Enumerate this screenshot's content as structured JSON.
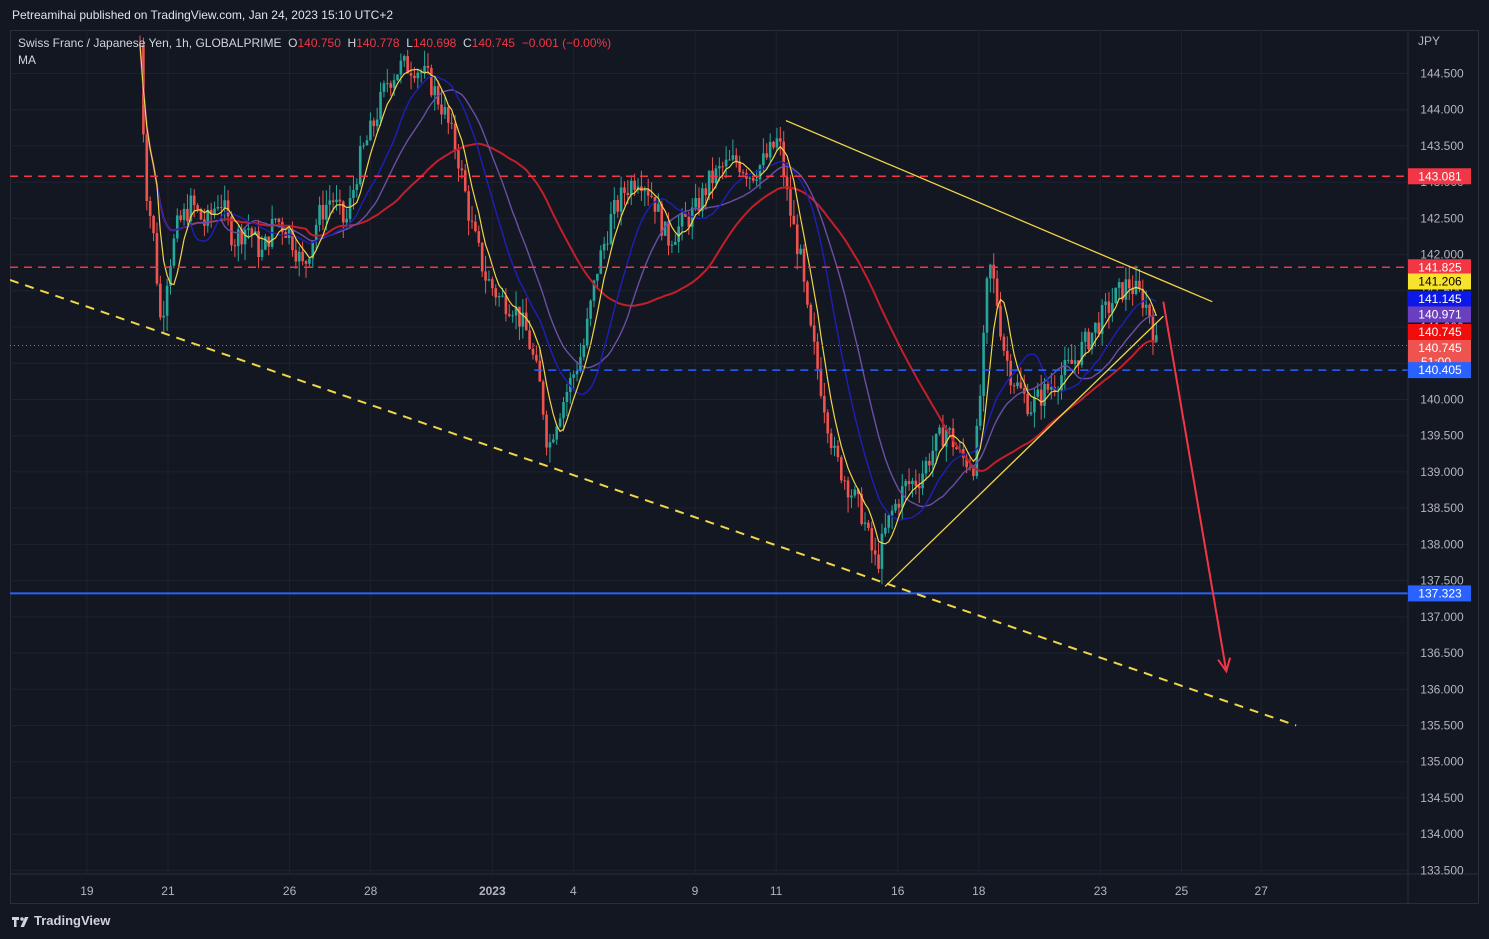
{
  "header": {
    "published": "Petreamihai published on TradingView.com, Jan 24, 2023 15:10 UTC+2"
  },
  "legend": {
    "symbol": "Swiss Franc / Japanese Yen, 1h, GLOBALPRIME",
    "o_label": "O",
    "o_value": "140.750",
    "h_label": "H",
    "h_value": "140.778",
    "l_label": "L",
    "l_value": "140.698",
    "c_label": "C",
    "c_value": "140.745",
    "change": "−0.001 (−0.00%)",
    "indicator": "MA"
  },
  "footer": {
    "brand": "TradingView",
    "logo_icon": "tradingview-logo-icon"
  },
  "colors": {
    "background": "#131722",
    "grid": "#1e222d",
    "up": "#26a69a",
    "down": "#ef5350",
    "ma_fast": "#f0d648",
    "ma_mid": "#1f1fb8",
    "ma_slow": "#6a4fa3",
    "ma_long": "#c21f2a",
    "red_level": "#f23645",
    "blue_level": "#2962ff",
    "trend_yellow": "#f0d648",
    "arrow": "#f23645"
  },
  "chart_data": {
    "type": "candlestick",
    "title": "Swiss Franc / Japanese Yen, 1h, GLOBALPRIME",
    "currency": "JPY",
    "ylim": [
      133.45,
      145.1
    ],
    "y_ticks": [
      "144.500",
      "144.000",
      "143.500",
      "143.000",
      "142.500",
      "142.000",
      "141.500",
      "141.000",
      "140.500",
      "140.000",
      "139.500",
      "139.000",
      "138.500",
      "138.000",
      "137.500",
      "137.000",
      "136.500",
      "136.000",
      "135.500",
      "135.000",
      "134.500",
      "134.000",
      "133.500"
    ],
    "x_labels": [
      {
        "label": "19",
        "pos": 0.055,
        "bold": false
      },
      {
        "label": "21",
        "pos": 0.113,
        "bold": false
      },
      {
        "label": "26",
        "pos": 0.2,
        "bold": false
      },
      {
        "label": "28",
        "pos": 0.258,
        "bold": false
      },
      {
        "label": "2023",
        "pos": 0.345,
        "bold": true
      },
      {
        "label": "4",
        "pos": 0.403,
        "bold": false
      },
      {
        "label": "9",
        "pos": 0.49,
        "bold": false
      },
      {
        "label": "11",
        "pos": 0.548,
        "bold": false
      },
      {
        "label": "16",
        "pos": 0.635,
        "bold": false
      },
      {
        "label": "18",
        "pos": 0.693,
        "bold": false
      },
      {
        "label": "23",
        "pos": 0.78,
        "bold": false
      },
      {
        "label": "25",
        "pos": 0.838,
        "bold": false
      },
      {
        "label": "27",
        "pos": 0.895,
        "bold": false
      }
    ],
    "x_label_note": "x positions are fractions of the time-axis width",
    "price_path": [
      [
        0.093,
        144.9
      ],
      [
        0.097,
        143.0
      ],
      [
        0.103,
        142.2
      ],
      [
        0.108,
        141.0
      ],
      [
        0.113,
        141.8
      ],
      [
        0.12,
        142.4
      ],
      [
        0.13,
        142.7
      ],
      [
        0.14,
        142.4
      ],
      [
        0.15,
        142.8
      ],
      [
        0.16,
        142.2
      ],
      [
        0.17,
        142.4
      ],
      [
        0.18,
        142.0
      ],
      [
        0.19,
        142.5
      ],
      [
        0.2,
        142.3
      ],
      [
        0.21,
        141.8
      ],
      [
        0.22,
        142.5
      ],
      [
        0.23,
        142.8
      ],
      [
        0.24,
        142.4
      ],
      [
        0.25,
        143.3
      ],
      [
        0.26,
        143.8
      ],
      [
        0.27,
        144.4
      ],
      [
        0.28,
        144.6
      ],
      [
        0.29,
        144.6
      ],
      [
        0.3,
        144.4
      ],
      [
        0.31,
        144.0
      ],
      [
        0.32,
        143.4
      ],
      [
        0.33,
        142.4
      ],
      [
        0.34,
        141.7
      ],
      [
        0.35,
        141.4
      ],
      [
        0.36,
        141.3
      ],
      [
        0.37,
        140.9
      ],
      [
        0.38,
        140.1
      ],
      [
        0.385,
        139.3
      ],
      [
        0.39,
        139.7
      ],
      [
        0.4,
        140.2
      ],
      [
        0.41,
        140.7
      ],
      [
        0.42,
        141.8
      ],
      [
        0.43,
        142.5
      ],
      [
        0.44,
        142.9
      ],
      [
        0.45,
        143.1
      ],
      [
        0.46,
        142.8
      ],
      [
        0.47,
        142.2
      ],
      [
        0.48,
        142.4
      ],
      [
        0.49,
        142.6
      ],
      [
        0.5,
        143.0
      ],
      [
        0.51,
        143.2
      ],
      [
        0.52,
        143.3
      ],
      [
        0.53,
        143.1
      ],
      [
        0.54,
        143.3
      ],
      [
        0.55,
        143.6
      ],
      [
        0.555,
        142.9
      ],
      [
        0.56,
        142.4
      ],
      [
        0.565,
        142.0
      ],
      [
        0.57,
        141.2
      ],
      [
        0.58,
        140.2
      ],
      [
        0.59,
        139.2
      ],
      [
        0.6,
        138.8
      ],
      [
        0.61,
        138.4
      ],
      [
        0.615,
        138.0
      ],
      [
        0.62,
        137.7
      ],
      [
        0.625,
        138.1
      ],
      [
        0.63,
        138.4
      ],
      [
        0.64,
        138.8
      ],
      [
        0.65,
        138.9
      ],
      [
        0.66,
        139.3
      ],
      [
        0.67,
        139.6
      ],
      [
        0.68,
        139.2
      ],
      [
        0.69,
        139.1
      ],
      [
        0.695,
        140.3
      ],
      [
        0.7,
        141.9
      ],
      [
        0.705,
        141.5
      ],
      [
        0.71,
        140.8
      ],
      [
        0.715,
        140.4
      ],
      [
        0.72,
        140.2
      ],
      [
        0.73,
        139.9
      ],
      [
        0.74,
        140.1
      ],
      [
        0.75,
        140.3
      ],
      [
        0.76,
        140.5
      ],
      [
        0.77,
        140.8
      ],
      [
        0.78,
        141.1
      ],
      [
        0.79,
        141.4
      ],
      [
        0.8,
        141.6
      ],
      [
        0.81,
        141.4
      ],
      [
        0.815,
        141.2
      ],
      [
        0.82,
        140.745
      ]
    ],
    "red_levels": [
      143.081,
      141.825
    ],
    "blue_level_solid": 137.323,
    "blue_level_dashed": 140.405,
    "price_labels": [
      {
        "text": "143.081",
        "price": 143.081,
        "bg": "#f23645",
        "fg": "#ffffff"
      },
      {
        "text": "141.825",
        "price": 141.825,
        "bg": "#f23645",
        "fg": "#ffffff"
      },
      {
        "text": "141.206",
        "price": 141.206,
        "bg": "#f7e32c",
        "fg": "#000000"
      },
      {
        "text": "141.145",
        "price": 141.145,
        "bg": "#0c18e8",
        "fg": "#ffffff"
      },
      {
        "text": "140.971",
        "price": 140.971,
        "bg": "#6a3fbf",
        "fg": "#ffffff"
      },
      {
        "text": "140.745",
        "price": 140.745,
        "bg": "#f20d0d",
        "fg": "#ffffff"
      },
      {
        "text": "140.745",
        "price": 140.745,
        "bg": "#ef5350",
        "fg": "#ffffff",
        "sub": "51:00"
      },
      {
        "text": "140.405",
        "price": 140.405,
        "bg": "#2962ff",
        "fg": "#ffffff"
      },
      {
        "text": "137.323",
        "price": 137.323,
        "bg": "#2962ff",
        "fg": "#ffffff"
      }
    ],
    "trendlines": [
      {
        "name": "descending-support-dashed",
        "dashed": true,
        "from": [
          0.0,
          141.65
        ],
        "to": [
          0.92,
          135.5
        ]
      },
      {
        "name": "triangle-upper",
        "dashed": false,
        "from": [
          0.555,
          143.85
        ],
        "to": [
          0.86,
          141.35
        ]
      },
      {
        "name": "triangle-lower",
        "dashed": false,
        "from": [
          0.626,
          137.42
        ],
        "to": [
          0.825,
          141.15
        ]
      }
    ],
    "arrow": {
      "from": [
        0.825,
        141.35
      ],
      "to": [
        0.87,
        136.25
      ]
    }
  }
}
